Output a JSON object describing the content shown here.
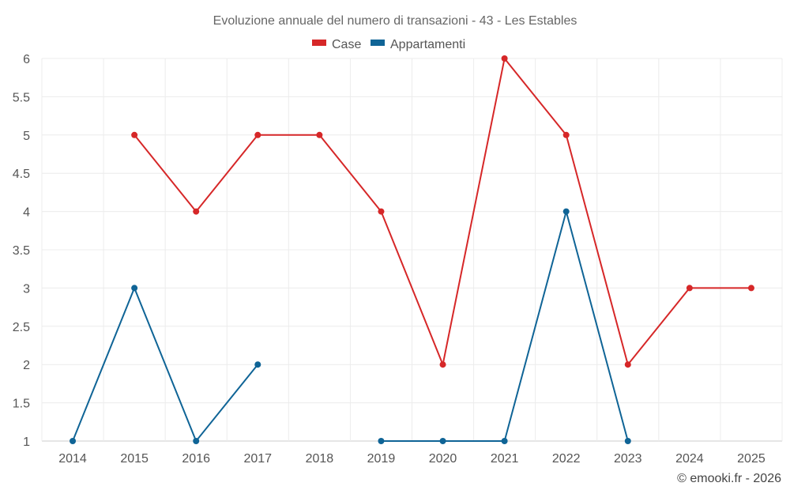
{
  "chart_data": {
    "type": "line",
    "title": "Evoluzione annuale del numero di transazioni - 43 - Les Estables",
    "xlabel": "",
    "ylabel": "",
    "categories": [
      "2014",
      "2015",
      "2016",
      "2017",
      "2018",
      "2019",
      "2020",
      "2021",
      "2022",
      "2023",
      "2024",
      "2025"
    ],
    "ylim": [
      1,
      6
    ],
    "yticks": [
      "1",
      "1.5",
      "2",
      "2.5",
      "3",
      "3.5",
      "4",
      "4.5",
      "5",
      "5.5",
      "6"
    ],
    "grid": true,
    "legend_position": "top-center",
    "series": [
      {
        "name": "Case",
        "color": "#d62728",
        "values": [
          null,
          5,
          4,
          5,
          5,
          4,
          2,
          6,
          5,
          2,
          3,
          3
        ]
      },
      {
        "name": "Appartamenti",
        "color": "#0f6496",
        "values": [
          1,
          3,
          1,
          2,
          null,
          1,
          1,
          1,
          4,
          1,
          null,
          null
        ]
      }
    ]
  },
  "credit": "© emooki.fr - 2026"
}
